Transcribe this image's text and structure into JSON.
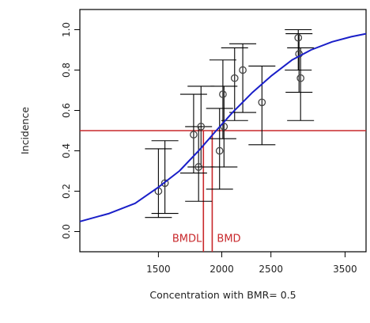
{
  "chart_data": {
    "type": "scatter",
    "title": "",
    "xlabel": "Concentration with BMR= 0.5",
    "ylabel": "Incidence",
    "xlim": [
      1050,
      3850
    ],
    "ylim": [
      -0.1,
      1.1
    ],
    "x_scale": "log",
    "xticks": [
      1500,
      2000,
      2500,
      3500
    ],
    "xtick_labels": [
      "1500",
      "2000",
      "2500",
      "3500"
    ],
    "yticks": [
      0.0,
      0.2,
      0.4,
      0.6,
      0.8,
      1.0
    ],
    "ytick_labels": [
      "0.0",
      "0.2",
      "0.4",
      "0.6",
      "0.8",
      "1.0"
    ],
    "grid": false,
    "points": [
      {
        "x": 1500,
        "y": 0.2,
        "lower": 0.07,
        "upper": 0.41
      },
      {
        "x": 1545,
        "y": 0.24,
        "lower": 0.09,
        "upper": 0.45
      },
      {
        "x": 1760,
        "y": 0.48,
        "lower": 0.29,
        "upper": 0.68
      },
      {
        "x": 1800,
        "y": 0.32,
        "lower": 0.15,
        "upper": 0.52
      },
      {
        "x": 1820,
        "y": 0.52,
        "lower": 0.32,
        "upper": 0.72
      },
      {
        "x": 1980,
        "y": 0.4,
        "lower": 0.21,
        "upper": 0.61
      },
      {
        "x": 2010,
        "y": 0.68,
        "lower": 0.46,
        "upper": 0.85
      },
      {
        "x": 2020,
        "y": 0.52,
        "lower": 0.32,
        "upper": 0.72
      },
      {
        "x": 2120,
        "y": 0.76,
        "lower": 0.55,
        "upper": 0.91
      },
      {
        "x": 2200,
        "y": 0.8,
        "lower": 0.59,
        "upper": 0.93
      },
      {
        "x": 2400,
        "y": 0.64,
        "lower": 0.43,
        "upper": 0.82
      },
      {
        "x": 2830,
        "y": 0.96,
        "lower": 0.8,
        "upper": 1.0
      },
      {
        "x": 2840,
        "y": 0.88,
        "lower": 0.69,
        "upper": 0.98
      },
      {
        "x": 2860,
        "y": 0.76,
        "lower": 0.55,
        "upper": 0.91
      }
    ],
    "fit_curve": {
      "x": [
        1050,
        1200,
        1350,
        1500,
        1650,
        1800,
        1950,
        2100,
        2300,
        2500,
        2750,
        3000,
        3300,
        3600,
        3850
      ],
      "y": [
        0.05,
        0.09,
        0.14,
        0.22,
        0.3,
        0.4,
        0.5,
        0.59,
        0.69,
        0.77,
        0.85,
        0.9,
        0.94,
        0.965,
        0.98
      ]
    },
    "hline": {
      "y": 0.5
    },
    "markers": [
      {
        "label": "BMDL",
        "x": 1840
      },
      {
        "label": "BMD",
        "x": 1915
      }
    ],
    "colors": {
      "points": "#444444",
      "errorbars": "#000000",
      "curve": "#1a1fc8",
      "reference": "#c8282b",
      "axes": "#000000"
    }
  }
}
